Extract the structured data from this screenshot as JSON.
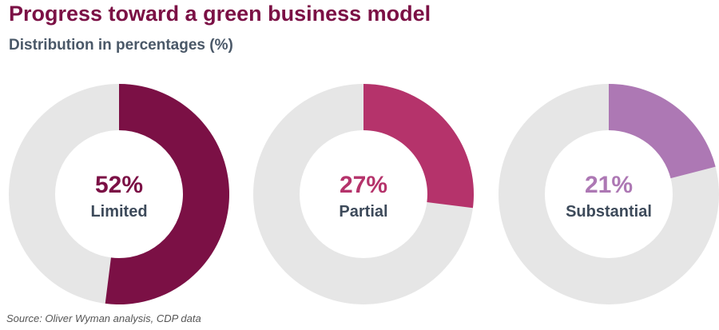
{
  "chart_data": {
    "type": "donut",
    "title": "Progress toward a green business model",
    "subtitle": "Distribution in percentages (%)",
    "series": [
      {
        "name": "Limited",
        "value": 52,
        "label": "52%",
        "color": "#7b1045"
      },
      {
        "name": "Partial",
        "value": 27,
        "label": "27%",
        "color": "#b5336b"
      },
      {
        "name": "Substantial",
        "value": 21,
        "label": "21%",
        "color": "#ad78b4"
      }
    ],
    "remainder_color": "#e6e6e6",
    "source": "Source: Oliver Wyman analysis, CDP data"
  }
}
